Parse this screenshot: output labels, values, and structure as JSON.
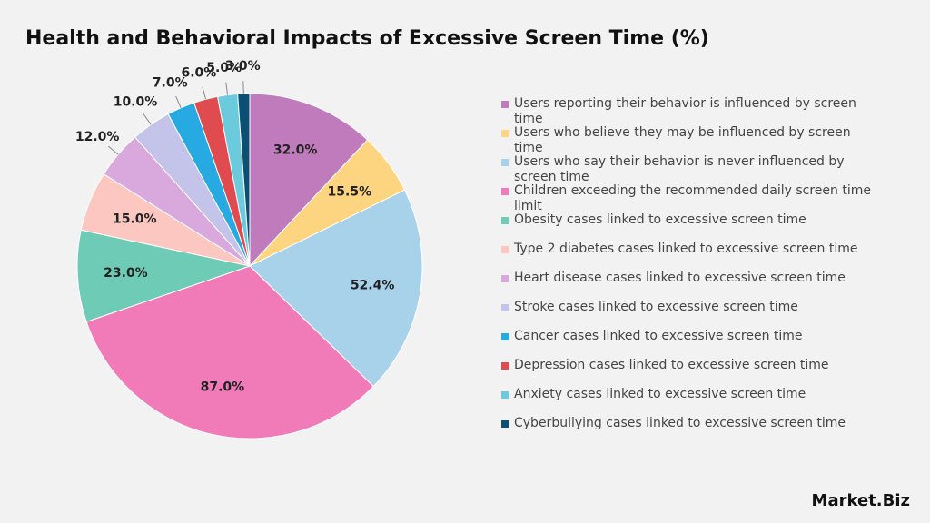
{
  "chart_data": {
    "type": "pie",
    "title": "Health and Behavioral Impacts of Excessive Screen Time (%)",
    "categories": [
      "Users reporting their behavior is influenced by screen time",
      "Users who believe they may be influenced by screen time",
      "Users who say their behavior is never influenced by screen time",
      "Children exceeding the recommended daily screen time limit",
      "Obesity cases linked to excessive screen time",
      "Type 2 diabetes cases linked to excessive screen time",
      "Heart disease cases linked to excessive screen time",
      "Stroke cases linked to excessive screen time",
      "Cancer cases linked to excessive screen time",
      "Depression cases linked to excessive screen time",
      "Anxiety cases linked to excessive screen time",
      "Cyberbullying cases linked to excessive screen time"
    ],
    "values": [
      32.0,
      15.5,
      52.4,
      87.0,
      23.0,
      15.0,
      12.0,
      10.0,
      7.0,
      6.0,
      5.0,
      3.0
    ],
    "value_labels": [
      "32.0%",
      "15.5%",
      "52.4%",
      "87.0%",
      "23.0%",
      "15.0%",
      "12.0%",
      "10.0%",
      "7.0%",
      "6.0%",
      "5.0%",
      "3.0%"
    ],
    "colors": [
      "#c07bbd",
      "#fdd47f",
      "#a8d1ea",
      "#f17bb8",
      "#6ecbb5",
      "#fcc7c0",
      "#d9a8dc",
      "#c4c3ea",
      "#27aae1",
      "#e04b4f",
      "#6bcbdc",
      "#0b4f73"
    ],
    "legend": "right"
  },
  "brand": "Market.Biz"
}
